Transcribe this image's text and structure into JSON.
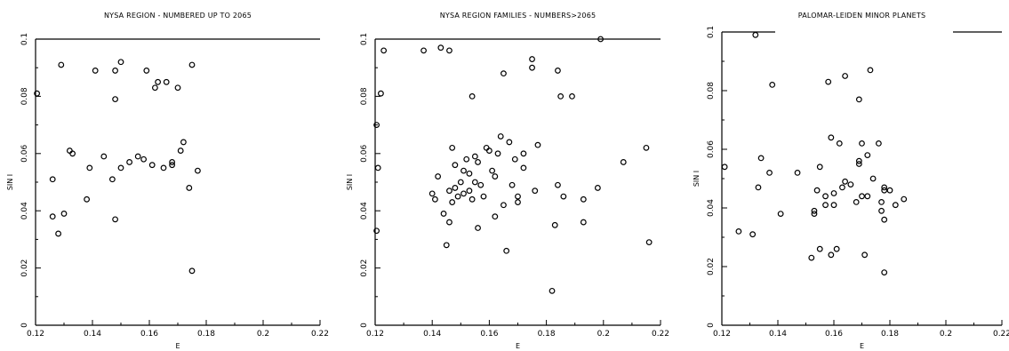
{
  "chart_data": [
    {
      "type": "scatter",
      "title": "NYSA REGION - NUMBERED UP TO 2065",
      "xlabel": "E",
      "ylabel": "SIN I",
      "xlim": [
        0.12,
        0.22
      ],
      "ylim": [
        0,
        0.1
      ],
      "xticks": [
        "0.12",
        "0.14",
        "0.16",
        "0.18",
        "0.2",
        "0.22"
      ],
      "yticks": [
        "0",
        "0.02",
        "0.04",
        "0.06",
        "0.08",
        "0.1"
      ],
      "grid": false,
      "points": [
        [
          0.1205,
          0.081
        ],
        [
          0.126,
          0.051
        ],
        [
          0.126,
          0.038
        ],
        [
          0.128,
          0.032
        ],
        [
          0.129,
          0.091
        ],
        [
          0.13,
          0.039
        ],
        [
          0.132,
          0.061
        ],
        [
          0.133,
          0.06
        ],
        [
          0.138,
          0.044
        ],
        [
          0.139,
          0.055
        ],
        [
          0.141,
          0.089
        ],
        [
          0.144,
          0.059
        ],
        [
          0.147,
          0.051
        ],
        [
          0.148,
          0.037
        ],
        [
          0.148,
          0.089
        ],
        [
          0.148,
          0.079
        ],
        [
          0.15,
          0.092
        ],
        [
          0.15,
          0.055
        ],
        [
          0.153,
          0.057
        ],
        [
          0.156,
          0.059
        ],
        [
          0.158,
          0.058
        ],
        [
          0.159,
          0.089
        ],
        [
          0.161,
          0.056
        ],
        [
          0.162,
          0.083
        ],
        [
          0.163,
          0.085
        ],
        [
          0.165,
          0.055
        ],
        [
          0.166,
          0.085
        ],
        [
          0.168,
          0.056
        ],
        [
          0.168,
          0.057
        ],
        [
          0.17,
          0.083
        ],
        [
          0.171,
          0.061
        ],
        [
          0.172,
          0.064
        ],
        [
          0.174,
          0.048
        ],
        [
          0.175,
          0.091
        ],
        [
          0.175,
          0.019
        ],
        [
          0.177,
          0.054
        ]
      ]
    },
    {
      "type": "scatter",
      "title": "NYSA REGION FAMILIES - NUMBERS>2065",
      "xlabel": "E",
      "ylabel": "SIN I",
      "xlim": [
        0.12,
        0.22
      ],
      "ylim": [
        0,
        0.1
      ],
      "xticks": [
        "0.12",
        "0.14",
        "0.16",
        "0.18",
        "0.2",
        "0.22"
      ],
      "yticks": [
        "0",
        "0.02",
        "0.04",
        "0.06",
        "0.08",
        "0.1"
      ],
      "grid": false,
      "points": [
        [
          0.1205,
          0.07
        ],
        [
          0.1205,
          0.033
        ],
        [
          0.121,
          0.055
        ],
        [
          0.122,
          0.081
        ],
        [
          0.123,
          0.096
        ],
        [
          0.137,
          0.096
        ],
        [
          0.14,
          0.046
        ],
        [
          0.141,
          0.044
        ],
        [
          0.142,
          0.052
        ],
        [
          0.143,
          0.097
        ],
        [
          0.144,
          0.039
        ],
        [
          0.145,
          0.028
        ],
        [
          0.146,
          0.096
        ],
        [
          0.146,
          0.047
        ],
        [
          0.146,
          0.036
        ],
        [
          0.147,
          0.062
        ],
        [
          0.147,
          0.043
        ],
        [
          0.148,
          0.056
        ],
        [
          0.148,
          0.048
        ],
        [
          0.149,
          0.045
        ],
        [
          0.15,
          0.05
        ],
        [
          0.151,
          0.054
        ],
        [
          0.151,
          0.046
        ],
        [
          0.152,
          0.058
        ],
        [
          0.153,
          0.053
        ],
        [
          0.153,
          0.047
        ],
        [
          0.154,
          0.08
        ],
        [
          0.154,
          0.044
        ],
        [
          0.155,
          0.059
        ],
        [
          0.155,
          0.05
        ],
        [
          0.156,
          0.057
        ],
        [
          0.156,
          0.034
        ],
        [
          0.157,
          0.049
        ],
        [
          0.158,
          0.045
        ],
        [
          0.159,
          0.062
        ],
        [
          0.16,
          0.061
        ],
        [
          0.161,
          0.054
        ],
        [
          0.162,
          0.052
        ],
        [
          0.162,
          0.038
        ],
        [
          0.163,
          0.06
        ],
        [
          0.164,
          0.066
        ],
        [
          0.165,
          0.088
        ],
        [
          0.165,
          0.042
        ],
        [
          0.166,
          0.026
        ],
        [
          0.167,
          0.064
        ],
        [
          0.168,
          0.049
        ],
        [
          0.169,
          0.058
        ],
        [
          0.17,
          0.045
        ],
        [
          0.17,
          0.043
        ],
        [
          0.172,
          0.06
        ],
        [
          0.172,
          0.055
        ],
        [
          0.175,
          0.093
        ],
        [
          0.175,
          0.09
        ],
        [
          0.176,
          0.047
        ],
        [
          0.177,
          0.063
        ],
        [
          0.182,
          0.012
        ],
        [
          0.183,
          0.035
        ],
        [
          0.184,
          0.089
        ],
        [
          0.184,
          0.049
        ],
        [
          0.185,
          0.08
        ],
        [
          0.186,
          0.045
        ],
        [
          0.189,
          0.08
        ],
        [
          0.193,
          0.044
        ],
        [
          0.193,
          0.036
        ],
        [
          0.198,
          0.048
        ],
        [
          0.199,
          0.1
        ],
        [
          0.207,
          0.057
        ],
        [
          0.215,
          0.062
        ],
        [
          0.216,
          0.029
        ]
      ]
    },
    {
      "type": "scatter",
      "title": "PALOMAR-LEIDEN MINOR PLANETS",
      "xlabel": "E",
      "ylabel": "SIN I",
      "xlim": [
        0.12,
        0.22
      ],
      "ylim": [
        0,
        0.1
      ],
      "xticks": [
        "0.12",
        "0.14",
        "0.16",
        "0.18",
        "0.2",
        "0.22"
      ],
      "yticks": [
        "0",
        "0.02",
        "0.04",
        "0.06",
        "0.08",
        "0.1"
      ],
      "grid": false,
      "points": [
        [
          0.121,
          0.054
        ],
        [
          0.126,
          0.032
        ],
        [
          0.131,
          0.031
        ],
        [
          0.132,
          0.099
        ],
        [
          0.133,
          0.047
        ],
        [
          0.134,
          0.057
        ],
        [
          0.137,
          0.052
        ],
        [
          0.138,
          0.082
        ],
        [
          0.141,
          0.038
        ],
        [
          0.147,
          0.052
        ],
        [
          0.152,
          0.023
        ],
        [
          0.153,
          0.038
        ],
        [
          0.153,
          0.039
        ],
        [
          0.154,
          0.046
        ],
        [
          0.155,
          0.054
        ],
        [
          0.155,
          0.026
        ],
        [
          0.157,
          0.041
        ],
        [
          0.157,
          0.044
        ],
        [
          0.158,
          0.083
        ],
        [
          0.159,
          0.024
        ],
        [
          0.159,
          0.064
        ],
        [
          0.16,
          0.045
        ],
        [
          0.16,
          0.041
        ],
        [
          0.161,
          0.026
        ],
        [
          0.162,
          0.062
        ],
        [
          0.163,
          0.047
        ],
        [
          0.164,
          0.085
        ],
        [
          0.164,
          0.049
        ],
        [
          0.166,
          0.048
        ],
        [
          0.168,
          0.042
        ],
        [
          0.169,
          0.077
        ],
        [
          0.169,
          0.056
        ],
        [
          0.169,
          0.055
        ],
        [
          0.17,
          0.044
        ],
        [
          0.17,
          0.062
        ],
        [
          0.171,
          0.024
        ],
        [
          0.172,
          0.058
        ],
        [
          0.172,
          0.044
        ],
        [
          0.173,
          0.087
        ],
        [
          0.174,
          0.05
        ],
        [
          0.176,
          0.062
        ],
        [
          0.177,
          0.042
        ],
        [
          0.177,
          0.039
        ],
        [
          0.178,
          0.046
        ],
        [
          0.178,
          0.047
        ],
        [
          0.178,
          0.018
        ],
        [
          0.178,
          0.036
        ],
        [
          0.18,
          0.046
        ],
        [
          0.182,
          0.041
        ],
        [
          0.185,
          0.043
        ]
      ]
    }
  ]
}
